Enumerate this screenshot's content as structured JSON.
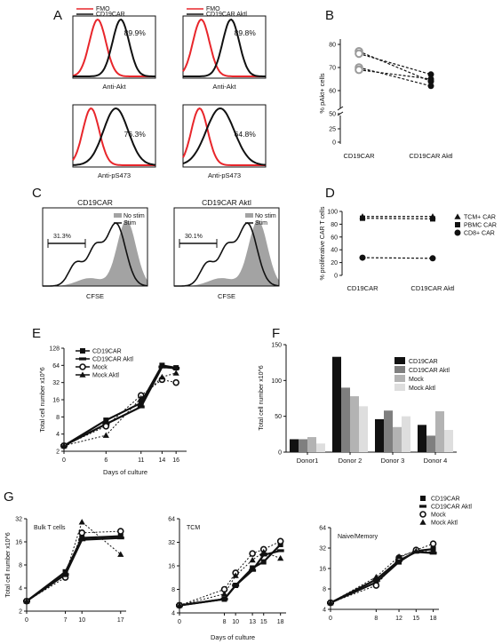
{
  "chart_data": [
    {
      "panel": "A",
      "type": "histogram-overlay",
      "legend_left": [
        "FMO",
        "CD19CAR"
      ],
      "legend_right": [
        "FMO",
        "CD19CAR Aktl"
      ],
      "histograms": [
        {
          "label": "89.9%",
          "xlabel": "Anti-Akt"
        },
        {
          "label": "89.8%",
          "xlabel": "Anti-Akt"
        },
        {
          "label": "76.3%",
          "xlabel": "Anti-pS473"
        },
        {
          "label": "64.8%",
          "xlabel": "Anti-pS473"
        }
      ],
      "colors": {
        "fmo": "#e8262b",
        "sample": "#111111"
      }
    },
    {
      "panel": "B",
      "type": "line",
      "ylabel": "% pAkt+ cells",
      "categories": [
        "CD19CAR",
        "CD19CAR Aktl"
      ],
      "yticks": [
        "0",
        "25",
        "50",
        "60",
        "70",
        "80"
      ],
      "series": [
        {
          "values": [
            77,
            64
          ]
        },
        {
          "values": [
            76,
            67
          ]
        },
        {
          "values": [
            70,
            62
          ]
        },
        {
          "values": [
            69,
            65
          ]
        }
      ]
    },
    {
      "panel": "C",
      "type": "histogram-overlay",
      "histograms": [
        {
          "title": "CD19CAR",
          "gate": "31.3%",
          "xlabel": "CFSE",
          "legend": [
            "No stim",
            "Stim"
          ]
        },
        {
          "title": "CD19CAR Aktl",
          "gate": "30.1%",
          "xlabel": "CFSE",
          "legend": [
            "No stim",
            "Stim"
          ]
        }
      ]
    },
    {
      "panel": "D",
      "type": "line",
      "ylabel": "% proliferative CAR T cells",
      "categories": [
        "CD19CAR",
        "CD19CAR Aktl"
      ],
      "ylim": [
        0,
        100
      ],
      "yticks": [
        "0",
        "20",
        "40",
        "60",
        "80",
        "100"
      ],
      "series": [
        {
          "name": "TCM+ CAR",
          "marker": "triangle",
          "values": [
            92,
            92
          ]
        },
        {
          "name": "PBMC CAR",
          "marker": "square",
          "values": [
            91,
            90
          ]
        },
        {
          "name": "CD8+ CAR",
          "marker": "circle",
          "values": [
            31,
            30
          ]
        }
      ]
    },
    {
      "panel": "E",
      "type": "line",
      "xlabel": "Days of culture",
      "ylabel": "Total cell number x10^6",
      "x": [
        0,
        6,
        11,
        14,
        16
      ],
      "y_scale": "log2",
      "yticks": [
        "2",
        "4",
        "8",
        "16",
        "32",
        "64",
        "128"
      ],
      "series": [
        {
          "name": "CD19CAR",
          "marker": "square",
          "values": [
            2.5,
            7,
            14,
            64,
            58
          ]
        },
        {
          "name": "CD19CAR Aktl",
          "marker": "bar",
          "values": [
            2.5,
            6,
            12,
            60,
            57
          ]
        },
        {
          "name": "Mock",
          "marker": "open-circle",
          "values": [
            2.5,
            5.5,
            19,
            36,
            32
          ]
        },
        {
          "name": "Mock Aktl",
          "marker": "triangle",
          "values": [
            2.5,
            3.8,
            17,
            40,
            47
          ]
        }
      ]
    },
    {
      "panel": "F",
      "type": "bar",
      "ylabel": "Total cell number x10^6",
      "categories": [
        "Donor1",
        "Donor 2",
        "Donor 3",
        "Donor 4"
      ],
      "ylim": [
        0,
        150
      ],
      "yticks": [
        "0",
        "50",
        "100",
        "150"
      ],
      "series": [
        {
          "name": "CD19CAR",
          "color": "#111111",
          "values": [
            18,
            133,
            46,
            38
          ]
        },
        {
          "name": "CD19CAR Aktl",
          "color": "#7f7f7f",
          "values": [
            18,
            90,
            58,
            23
          ]
        },
        {
          "name": "Mock",
          "color": "#b3b3b3",
          "values": [
            21,
            78,
            35,
            57
          ]
        },
        {
          "name": "Mock Aktl",
          "color": "#dedede",
          "values": [
            12,
            64,
            50,
            31
          ]
        }
      ]
    },
    {
      "panel": "G",
      "type": "line",
      "xlabel": "Days of culture",
      "ylabel": "Total cell number x10^6",
      "legend": [
        {
          "name": "CD19CAR",
          "marker": "square"
        },
        {
          "name": "CD19CAR Aktl",
          "marker": "bar"
        },
        {
          "name": "Mock",
          "marker": "open-circle"
        },
        {
          "name": "Mock Aktl",
          "marker": "triangle"
        }
      ],
      "subplots": [
        {
          "title": "Bulk T cells",
          "x": [
            0,
            7,
            10,
            17
          ],
          "yticks": [
            "2",
            "4",
            "8",
            "16",
            "32"
          ],
          "series": [
            {
              "name": "CD19CAR",
              "values": [
                2.7,
                6.5,
                18,
                19
              ]
            },
            {
              "name": "CD19CAR Aktl",
              "values": [
                2.7,
                6,
                17,
                18
              ]
            },
            {
              "name": "Mock",
              "values": [
                2.7,
                5.5,
                21,
                22
              ]
            },
            {
              "name": "Mock Aktl",
              "values": [
                2.7,
                6,
                29,
                11
              ]
            }
          ]
        },
        {
          "title": "TCM",
          "x": [
            0,
            8,
            10,
            13,
            15,
            18
          ],
          "yticks": [
            "4",
            "8",
            "16",
            "32",
            "64"
          ],
          "series": [
            {
              "name": "CD19CAR",
              "values": [
                5,
                6,
                9,
                15,
                18,
                30
              ]
            },
            {
              "name": "CD19CAR Aktl",
              "values": [
                5,
                6,
                9,
                14,
                22,
                25
              ]
            },
            {
              "name": "Mock",
              "values": [
                5,
                8,
                13,
                23,
                26,
                33
              ]
            },
            {
              "name": "Mock Aktl",
              "values": [
                5,
                7,
                12,
                19,
                24,
                20
              ]
            }
          ]
        },
        {
          "title": "Naive/Memory",
          "x": [
            0,
            8,
            12,
            15,
            18
          ],
          "yticks": [
            "4",
            "8",
            "16",
            "32",
            "64"
          ],
          "series": [
            {
              "name": "CD19CAR",
              "values": [
                5,
                10,
                20,
                29,
                31
              ]
            },
            {
              "name": "CD19CAR Aktl",
              "values": [
                5,
                11,
                21,
                28,
                27
              ]
            },
            {
              "name": "Mock",
              "values": [
                5,
                9,
                23,
                30,
                37
              ]
            },
            {
              "name": "Mock Aktl",
              "values": [
                5,
                12,
                24,
                29,
                28
              ]
            }
          ]
        }
      ]
    }
  ]
}
